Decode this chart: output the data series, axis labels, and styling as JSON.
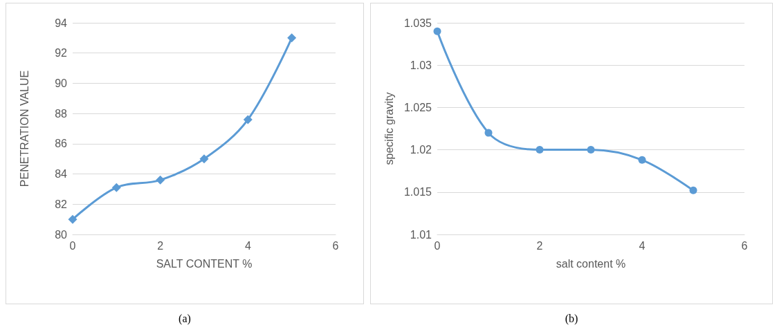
{
  "chart_data": [
    {
      "type": "line",
      "xlabel": "SALT CONTENT %",
      "ylabel": "PENETRATION VALUE",
      "x": [
        0,
        1,
        2,
        3,
        4,
        5
      ],
      "series": [
        {
          "color": "#5b9bd5",
          "values": [
            81,
            83.1,
            83.6,
            85,
            87.6,
            93
          ]
        }
      ],
      "xlim": [
        0,
        6
      ],
      "xticks": [
        0,
        2,
        4,
        6
      ],
      "ylim": [
        80,
        94
      ],
      "yticks": [
        80,
        82,
        84,
        86,
        88,
        90,
        92,
        94
      ],
      "grid": "y",
      "marker": "diamond",
      "annotations": [
        "(a)"
      ]
    },
    {
      "type": "line",
      "xlabel": "salt content %",
      "ylabel": "specific gravity",
      "x": [
        0,
        1,
        2,
        3,
        4,
        5
      ],
      "series": [
        {
          "color": "#5b9bd5",
          "values": [
            1.034,
            1.022,
            1.02,
            1.02,
            1.0188,
            1.0152
          ]
        }
      ],
      "xlim": [
        0,
        6
      ],
      "xticks": [
        0,
        2,
        4,
        6
      ],
      "ylim": [
        1.01,
        1.035
      ],
      "yticks": [
        1.01,
        1.015,
        1.02,
        1.025,
        1.03,
        1.035
      ],
      "grid": "y",
      "marker": "circle",
      "annotations": [
        "(b)"
      ]
    }
  ]
}
